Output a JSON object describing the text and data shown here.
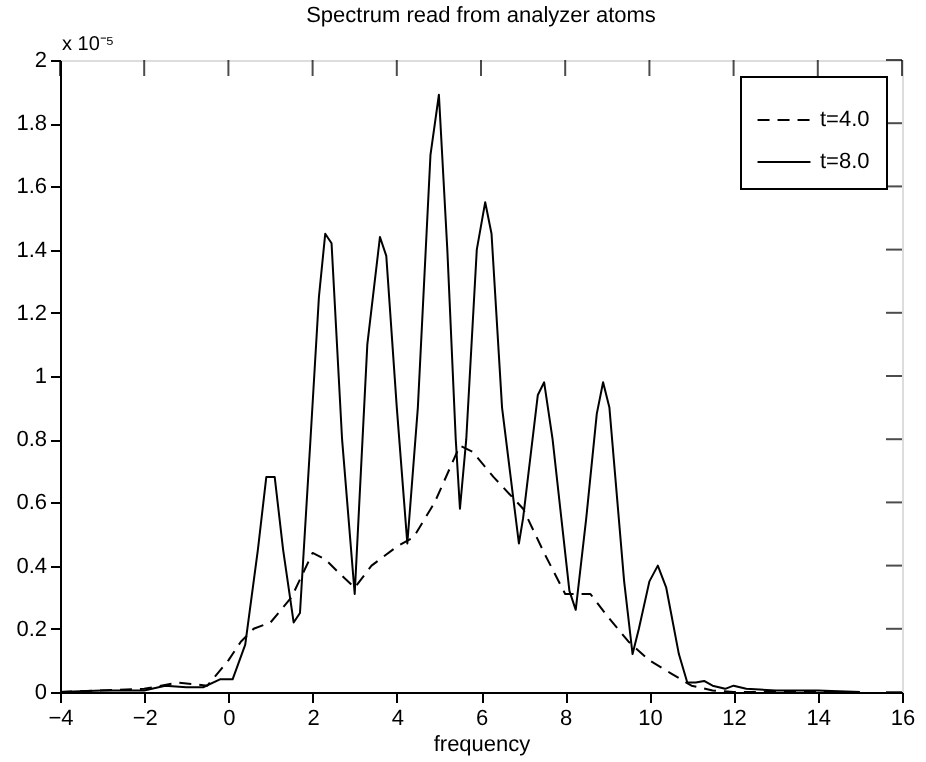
{
  "chart_data": {
    "type": "line",
    "title": "Spectrum read from analyzer atoms",
    "xlabel": "frequency",
    "annotations": [
      "x 10⁻⁵"
    ],
    "xlim": [
      -4,
      16
    ],
    "xticks": [
      -4,
      -2,
      0,
      2,
      4,
      6,
      8,
      10,
      12,
      14,
      16
    ],
    "ylim": [
      0,
      2
    ],
    "yticks": [
      0,
      0.2,
      0.4,
      0.6,
      0.8,
      1,
      1.2,
      1.4,
      1.6,
      1.8,
      2
    ],
    "grid": false,
    "legend": "top right",
    "marker": "none",
    "series": [
      {
        "name": "t=4.0",
        "color": "#000000",
        "line_style": "dashed",
        "x": [
          -4,
          -2,
          -1.2,
          -0.5,
          0,
          0.3,
          0.6,
          1.0,
          1.5,
          2.0,
          2.3,
          2.6,
          3.0,
          3.4,
          4.0,
          4.4,
          4.9,
          5.5,
          5.8,
          6.3,
          7.0,
          7.5,
          8.0,
          8.3,
          8.6,
          9.0,
          9.5,
          10.0,
          10.5,
          11.0,
          11.5,
          12,
          15
        ],
        "values": [
          0,
          0.01,
          0.03,
          0.02,
          0.1,
          0.16,
          0.2,
          0.22,
          0.3,
          0.44,
          0.42,
          0.38,
          0.33,
          0.4,
          0.46,
          0.49,
          0.6,
          0.78,
          0.76,
          0.68,
          0.58,
          0.44,
          0.31,
          0.31,
          0.31,
          0.24,
          0.16,
          0.1,
          0.06,
          0.02,
          0.005,
          0,
          0
        ]
      },
      {
        "name": "t=8.0",
        "color": "#000000",
        "line_style": "solid",
        "x": [
          -4,
          -3,
          -2,
          -1.5,
          -1,
          -0.6,
          -0.2,
          0.1,
          0.4,
          0.7,
          0.9,
          1.1,
          1.3,
          1.55,
          1.7,
          1.95,
          2.15,
          2.3,
          2.45,
          2.7,
          3.0,
          3.3,
          3.6,
          3.75,
          4.0,
          4.25,
          4.5,
          4.8,
          5.0,
          5.2,
          5.4,
          5.5,
          5.65,
          5.9,
          6.1,
          6.25,
          6.5,
          6.9,
          7.0,
          7.35,
          7.5,
          7.7,
          8.1,
          8.25,
          8.5,
          8.75,
          8.9,
          9.05,
          9.4,
          9.6,
          9.75,
          10.0,
          10.2,
          10.4,
          10.7,
          10.9,
          11.1,
          11.3,
          11.5,
          11.8,
          12.0,
          12.3,
          13,
          14,
          15
        ],
        "values": [
          0,
          0.005,
          0.005,
          0.02,
          0.015,
          0.015,
          0.04,
          0.04,
          0.15,
          0.45,
          0.68,
          0.68,
          0.45,
          0.22,
          0.25,
          0.8,
          1.25,
          1.45,
          1.42,
          0.8,
          0.31,
          1.1,
          1.44,
          1.38,
          0.9,
          0.47,
          0.9,
          1.7,
          1.89,
          1.4,
          0.8,
          0.58,
          0.8,
          1.4,
          1.55,
          1.45,
          0.9,
          0.47,
          0.55,
          0.94,
          0.98,
          0.8,
          0.32,
          0.26,
          0.55,
          0.88,
          0.98,
          0.9,
          0.35,
          0.12,
          0.2,
          0.35,
          0.4,
          0.33,
          0.12,
          0.03,
          0.03,
          0.035,
          0.02,
          0.01,
          0.02,
          0.01,
          0.005,
          0.005,
          0
        ]
      }
    ]
  }
}
